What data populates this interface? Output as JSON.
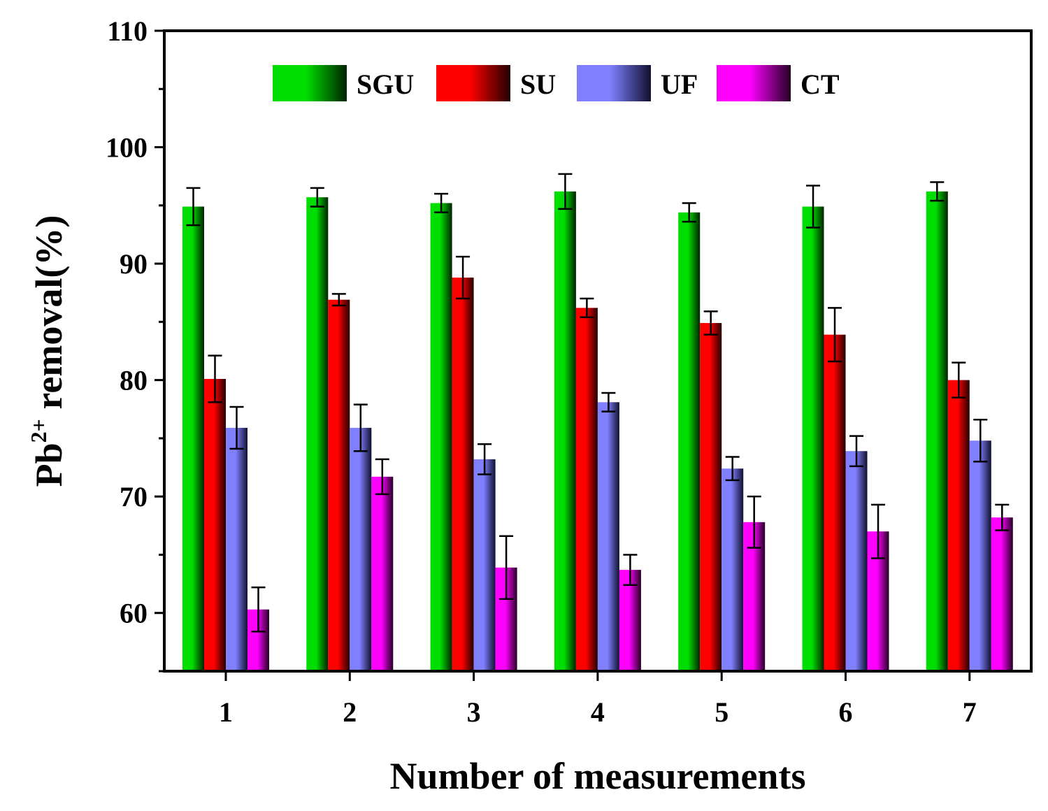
{
  "chart_data": {
    "type": "bar",
    "title": "",
    "xlabel": "Number of measurements",
    "ylabel": {
      "base": "Pb",
      "superscript": "2+",
      "rest": " removal(%)"
    },
    "ylim": [
      55,
      110
    ],
    "yticks": [
      60,
      70,
      80,
      90,
      100,
      110
    ],
    "categories": [
      "1",
      "2",
      "3",
      "4",
      "5",
      "6",
      "7"
    ],
    "legend_position": "top-center",
    "series": [
      {
        "name": "SGU",
        "color_light": "#00dd00",
        "color_dark": "#002200",
        "values": [
          94.9,
          95.7,
          95.2,
          96.2,
          94.4,
          94.9,
          96.2
        ],
        "errors": [
          1.6,
          0.8,
          0.8,
          1.5,
          0.8,
          1.8,
          0.8
        ]
      },
      {
        "name": "SU",
        "color_light": "#ff0000",
        "color_dark": "#220000",
        "values": [
          80.1,
          86.9,
          88.8,
          86.2,
          84.9,
          83.9,
          80.0
        ],
        "errors": [
          2.0,
          0.5,
          1.8,
          0.8,
          1.0,
          2.3,
          1.5
        ]
      },
      {
        "name": "UF",
        "color_light": "#8080ff",
        "color_dark": "#101030",
        "values": [
          75.9,
          75.9,
          73.2,
          78.1,
          72.4,
          73.9,
          74.8
        ],
        "errors": [
          1.8,
          2.0,
          1.3,
          0.8,
          1.0,
          1.3,
          1.8
        ]
      },
      {
        "name": "CT",
        "color_light": "#ff00ff",
        "color_dark": "#220022",
        "values": [
          60.3,
          71.7,
          63.9,
          63.7,
          67.8,
          67.0,
          68.2
        ],
        "errors": [
          1.9,
          1.5,
          2.7,
          1.3,
          2.2,
          2.3,
          1.1
        ]
      }
    ]
  }
}
